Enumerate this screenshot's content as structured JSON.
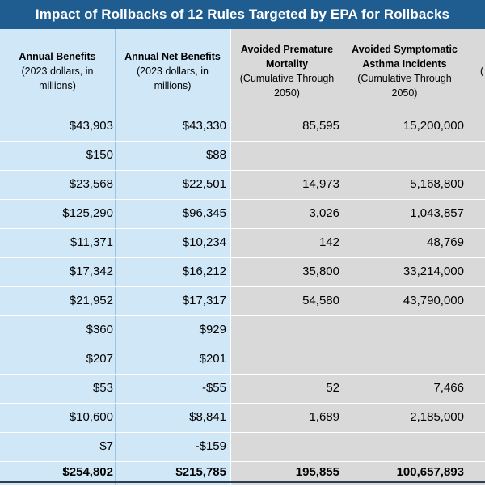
{
  "title": "Impact of Rollbacks of 12 Rules Targeted by EPA for Rollbacks",
  "headers": [
    {
      "bold": "Annual Benefits",
      "sub": [
        "(2023 dollars, in",
        "millions)"
      ]
    },
    {
      "bold": "Annual Net Benefits",
      "sub": [
        "(2023 dollars, in",
        "millions)"
      ]
    },
    {
      "bold": "Avoided Premature Mortality",
      "sub": [
        "(Cumulative Through",
        "2050)"
      ]
    },
    {
      "bold": "Avoided Symptomatic Asthma Incidents",
      "sub": [
        "(Cumulative Through",
        "2050)"
      ]
    },
    {
      "bold": "",
      "sub": [
        "("
      ]
    }
  ],
  "rows": [
    [
      "$43,903",
      "$43,330",
      "85,595",
      "15,200,000"
    ],
    [
      "$150",
      "$88",
      "",
      ""
    ],
    [
      "$23,568",
      "$22,501",
      "14,973",
      "5,168,800"
    ],
    [
      "$125,290",
      "$96,345",
      "3,026",
      "1,043,857"
    ],
    [
      "$11,371",
      "$10,234",
      "142",
      "48,769"
    ],
    [
      "$17,342",
      "$16,212",
      "35,800",
      "33,214,000"
    ],
    [
      "$21,952",
      "$17,317",
      "54,580",
      "43,790,000"
    ],
    [
      "$360",
      "$929",
      "",
      ""
    ],
    [
      "$207",
      "$201",
      "",
      ""
    ],
    [
      "$53",
      "-$55",
      "52",
      "7,466"
    ],
    [
      "$10,600",
      "$8,841",
      "1,689",
      "2,185,000"
    ],
    [
      "$7",
      "-$159",
      "",
      ""
    ]
  ],
  "totals": [
    "$254,802",
    "$215,785",
    "195,855",
    "100,657,893"
  ]
}
